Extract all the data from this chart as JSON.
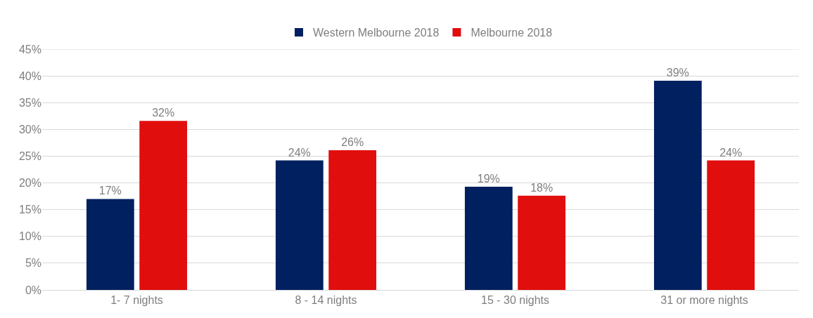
{
  "chart_data": {
    "type": "bar",
    "categories": [
      "1- 7 nights",
      "8 - 14 nights",
      "15 - 30 nights",
      "31 or more nights"
    ],
    "series": [
      {
        "name": "Western Melbourne 2018",
        "color": "#002060",
        "values": [
          17.0,
          24.2,
          19.3,
          39.1
        ],
        "value_labels": [
          "17%",
          "24%",
          "19%",
          "39%"
        ]
      },
      {
        "name": "Melbourne 2018",
        "color": "#e10e0e",
        "values": [
          31.6,
          26.1,
          17.6,
          24.2
        ],
        "value_labels": [
          "32%",
          "26%",
          "18%",
          "24%"
        ]
      }
    ],
    "ylim": [
      0,
      45
    ],
    "yticks": [
      {
        "value": 0,
        "label": "0%"
      },
      {
        "value": 5,
        "label": "5%"
      },
      {
        "value": 10,
        "label": "10%"
      },
      {
        "value": 15,
        "label": "15%"
      },
      {
        "value": 20,
        "label": "20%"
      },
      {
        "value": 25,
        "label": "25%"
      },
      {
        "value": 30,
        "label": "30%"
      },
      {
        "value": 35,
        "label": "35%"
      },
      {
        "value": 40,
        "label": "40%"
      },
      {
        "value": 45,
        "label": "45%"
      }
    ],
    "grid": "y",
    "legend": "top"
  }
}
